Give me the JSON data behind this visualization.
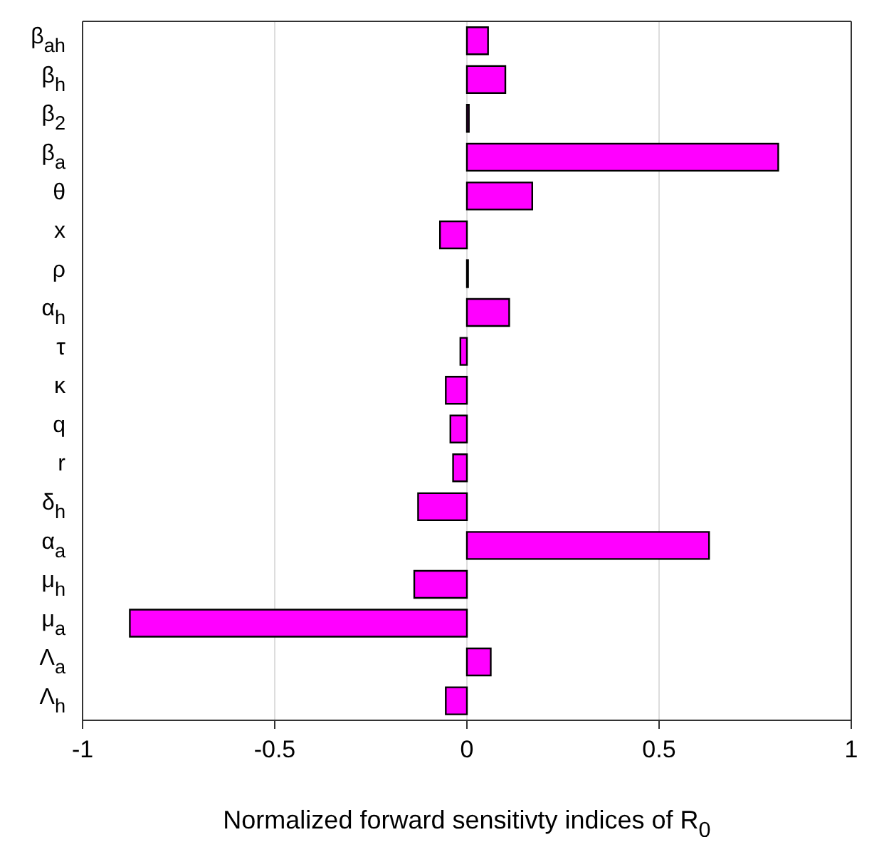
{
  "chart_data": {
    "type": "bar",
    "orientation": "horizontal",
    "xlabel": "Normalized forward sensitivty indices of R$_{0}$",
    "categories": [
      "β$_{ah}$",
      "β$_{h}$",
      "β$_{2}$",
      "β$_{a}$",
      "θ",
      "x",
      "ρ",
      "α$_{h}$",
      "τ",
      "κ",
      "q",
      "r",
      "δ$_{h}$",
      "α$_{a}$",
      "μ$_{h}$",
      "μ$_{a}$",
      "Λ$_{a}$",
      "Λ$_{h}$"
    ],
    "values": [
      0.055,
      0.1,
      0.005,
      0.81,
      0.17,
      -0.07,
      0.003,
      0.11,
      -0.017,
      -0.055,
      -0.043,
      -0.036,
      -0.127,
      0.63,
      -0.137,
      -0.877,
      0.062,
      -0.055
    ],
    "color": "#ff00ff",
    "xlim": [
      -1,
      1
    ],
    "xticks": [
      -1,
      -0.5,
      0,
      0.5,
      1
    ],
    "grid": "x"
  }
}
